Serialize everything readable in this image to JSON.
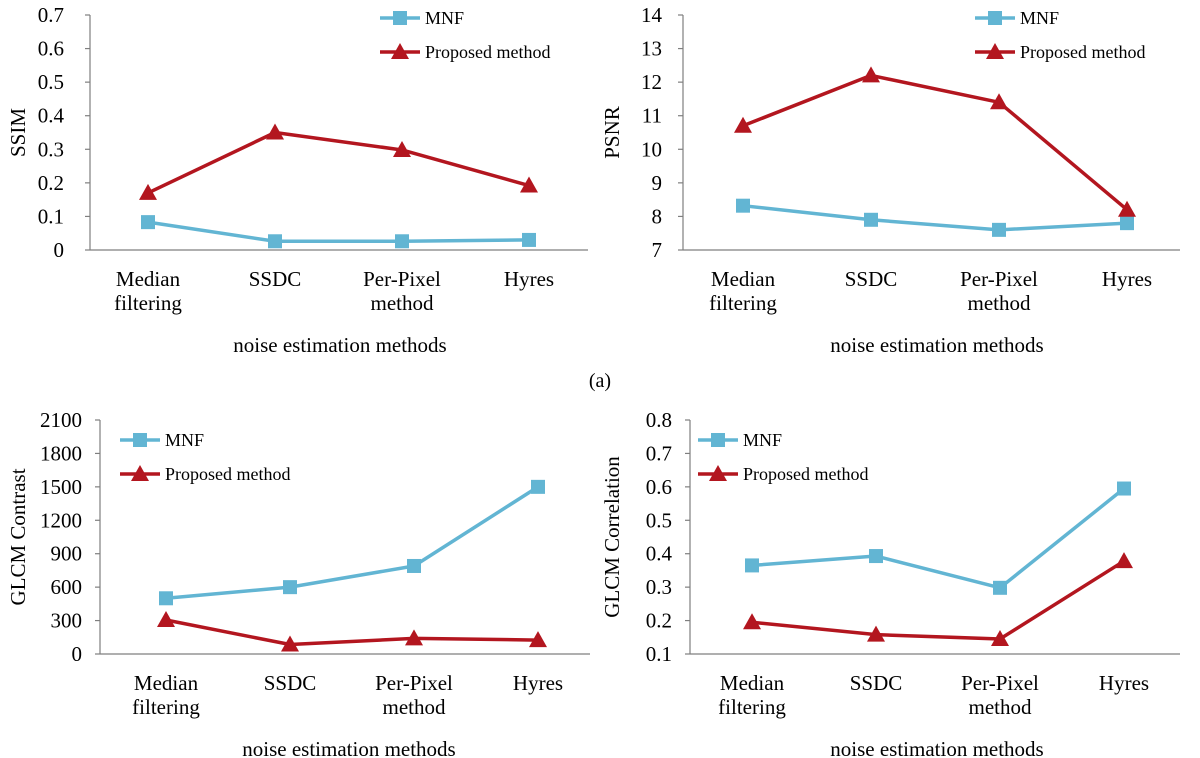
{
  "caption": "(a)",
  "colors": {
    "mnf": "#62b5d3",
    "proposed": "#b3161f",
    "axis": "#7f7f7f"
  },
  "chart_data": [
    {
      "id": "ssim",
      "type": "line",
      "ylabel": "SSIM",
      "xlabel": "noise estimation methods",
      "categories": [
        [
          "Median",
          "filtering"
        ],
        [
          "SSDC"
        ],
        [
          "Per-Pixel",
          "method"
        ],
        [
          "Hyres"
        ]
      ],
      "ylim": [
        0,
        0.7
      ],
      "yticks": [
        "0",
        "0.1",
        "0.2",
        "0.3",
        "0.4",
        "0.5",
        "0.6",
        "0.7"
      ],
      "yvalues": [
        0,
        0.1,
        0.2,
        0.3,
        0.4,
        0.5,
        0.6,
        0.7
      ],
      "series": [
        {
          "name": "MNF",
          "values": [
            0.083,
            0.026,
            0.026,
            0.03
          ]
        },
        {
          "name": "Proposed method",
          "values": [
            0.17,
            0.35,
            0.298,
            0.192
          ]
        }
      ]
    },
    {
      "id": "psnr",
      "type": "line",
      "ylabel": "PSNR",
      "xlabel": "noise estimation methods",
      "categories": [
        [
          "Median",
          "filtering"
        ],
        [
          "SSDC"
        ],
        [
          "Per-Pixel",
          "method"
        ],
        [
          "Hyres"
        ]
      ],
      "ylim": [
        7,
        14
      ],
      "yticks": [
        "7",
        "8",
        "9",
        "10",
        "11",
        "12",
        "13",
        "14"
      ],
      "yvalues": [
        7,
        8,
        9,
        10,
        11,
        12,
        13,
        14
      ],
      "series": [
        {
          "name": "MNF",
          "values": [
            8.32,
            7.9,
            7.6,
            7.8
          ]
        },
        {
          "name": "Proposed method",
          "values": [
            10.7,
            12.2,
            11.4,
            8.2
          ]
        }
      ]
    },
    {
      "id": "contrast",
      "type": "line",
      "ylabel": "GLCM Contrast",
      "xlabel": "noise estimation methods",
      "categories": [
        [
          "Median",
          "filtering"
        ],
        [
          "SSDC"
        ],
        [
          "Per-Pixel",
          "method"
        ],
        [
          "Hyres"
        ]
      ],
      "ylim": [
        0,
        2100
      ],
      "yticks": [
        "0",
        "300",
        "600",
        "900",
        "1200",
        "1500",
        "1800",
        "2100"
      ],
      "yvalues": [
        0,
        300,
        600,
        900,
        1200,
        1500,
        1800,
        2100
      ],
      "series": [
        {
          "name": "MNF",
          "values": [
            500,
            600,
            790,
            1500
          ]
        },
        {
          "name": "Proposed method",
          "values": [
            305,
            85,
            140,
            125
          ]
        }
      ]
    },
    {
      "id": "correlation",
      "type": "line",
      "ylabel": "GLCM Correlation",
      "xlabel": "noise estimation methods",
      "categories": [
        [
          "Median",
          "filtering"
        ],
        [
          "SSDC"
        ],
        [
          "Per-Pixel",
          "method"
        ],
        [
          "Hyres"
        ]
      ],
      "ylim": [
        0.1,
        0.8
      ],
      "yticks": [
        "0.1",
        "0.2",
        "0.3",
        "0.4",
        "0.5",
        "0.6",
        "0.7",
        "0.8"
      ],
      "yvalues": [
        0.1,
        0.2,
        0.3,
        0.4,
        0.5,
        0.6,
        0.7,
        0.8
      ],
      "series": [
        {
          "name": "MNF",
          "values": [
            0.365,
            0.393,
            0.298,
            0.595
          ]
        },
        {
          "name": "Proposed method",
          "values": [
            0.195,
            0.158,
            0.145,
            0.378
          ]
        }
      ]
    }
  ]
}
